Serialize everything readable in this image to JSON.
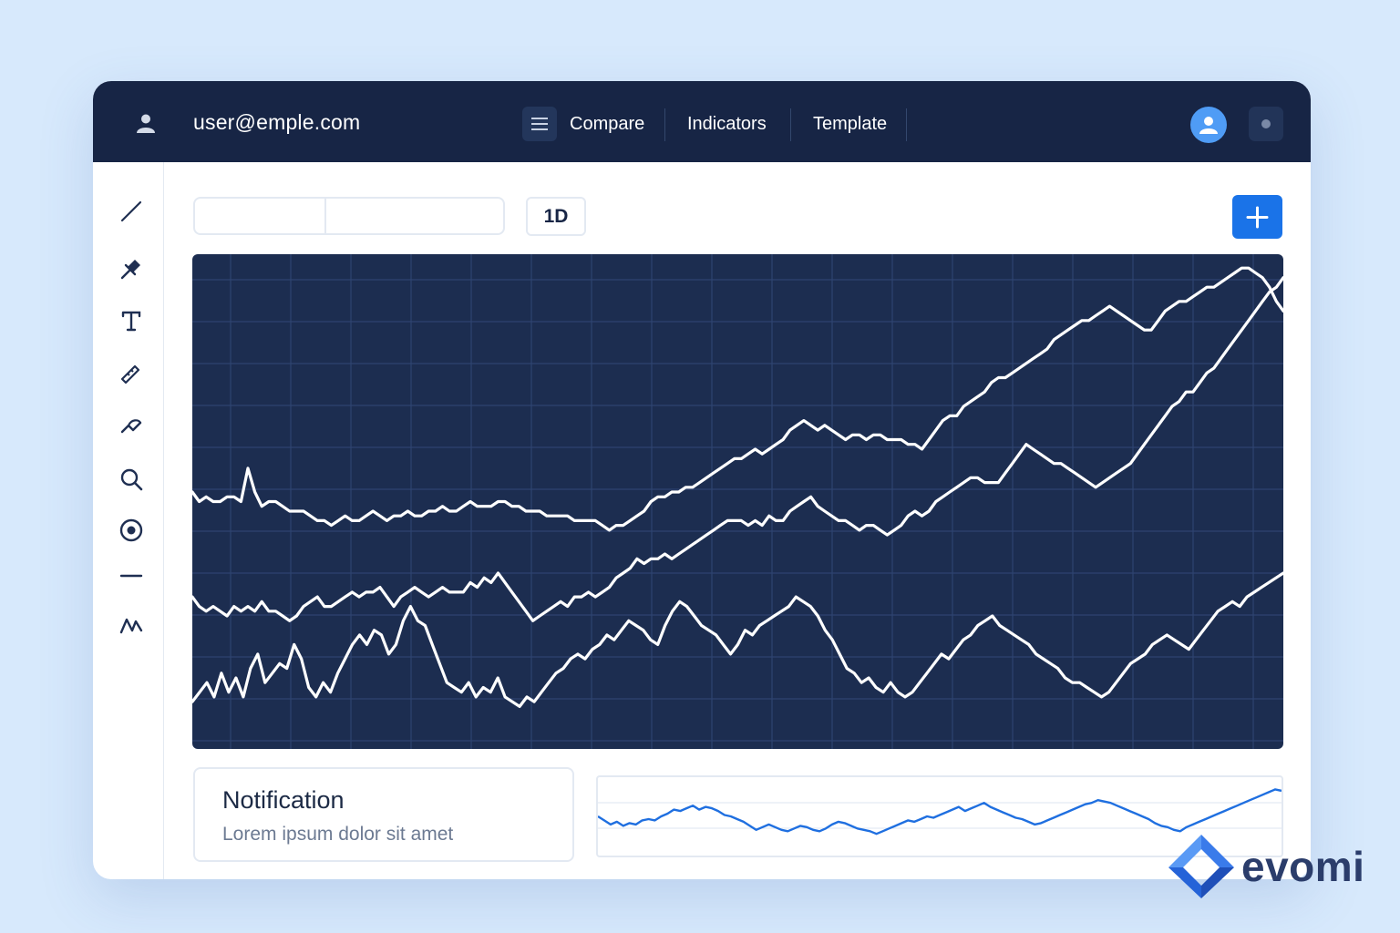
{
  "header": {
    "user_email": "user@emple.com",
    "nav": [
      {
        "label": "Compare"
      },
      {
        "label": "Indicators"
      },
      {
        "label": "Template"
      }
    ],
    "icons": {
      "user": "user-icon",
      "menu": "menu-icon",
      "avatar": "avatar-icon",
      "settings": "dot-icon"
    }
  },
  "sidebar": {
    "tools": [
      {
        "name": "line-tool-icon"
      },
      {
        "name": "pin-tool-icon"
      },
      {
        "name": "text-tool-icon"
      },
      {
        "name": "ruler-tool-icon"
      },
      {
        "name": "path-tool-icon"
      },
      {
        "name": "zoom-tool-icon"
      },
      {
        "name": "target-tool-icon"
      },
      {
        "name": "horizontal-line-tool-icon"
      },
      {
        "name": "wave-tool-icon"
      }
    ]
  },
  "toolbar": {
    "timeframe_label": "1D",
    "add_icon": "plus-icon"
  },
  "notification": {
    "title": "Notification",
    "body": "Lorem ipsum dolor sit amet"
  },
  "brand": {
    "name": "evomi"
  },
  "colors": {
    "topbar": "#172545",
    "chart_bg": "#1c2d50",
    "accent": "#1a73e8",
    "mini_line": "#1f6fe0"
  },
  "chart_data": [
    {
      "type": "line",
      "xlabel": "",
      "ylabel": "",
      "ylim": [
        0,
        100
      ],
      "grid": true,
      "series": [
        {
          "values": [
            52,
            50,
            51,
            50,
            50,
            51,
            51,
            50,
            57,
            52,
            49,
            50,
            50,
            49,
            48,
            48,
            48,
            47,
            46,
            46,
            45,
            46,
            47,
            46,
            46,
            47,
            48,
            47,
            46,
            47,
            47,
            48,
            47,
            47,
            48,
            48,
            49,
            48,
            48,
            49,
            50,
            49,
            49,
            49,
            50,
            50,
            49,
            49,
            48,
            48,
            48,
            47,
            47,
            47,
            47,
            46,
            46,
            46,
            46,
            45,
            44,
            45,
            45,
            46,
            47,
            48,
            50,
            51,
            51,
            52,
            52,
            53,
            53,
            54,
            55,
            56,
            57,
            58,
            59,
            59,
            60,
            61,
            60,
            61,
            62,
            63,
            65,
            66,
            67,
            66,
            65,
            66,
            65,
            64,
            63,
            64,
            64,
            63,
            64,
            64,
            63,
            63,
            63,
            62,
            62,
            61,
            63,
            65,
            67,
            68,
            68,
            70,
            71,
            72,
            73,
            75,
            76,
            76,
            77,
            78,
            79,
            80,
            81,
            82,
            84,
            85,
            86,
            87,
            88,
            88,
            89,
            90,
            91,
            90,
            89,
            88,
            87,
            86,
            86,
            88,
            90,
            91,
            92,
            92,
            93,
            94,
            95,
            95,
            96,
            97,
            98,
            99,
            99,
            98,
            97,
            95,
            92,
            90
          ]
        },
        {
          "values": [
            30,
            28,
            27,
            28,
            27,
            26,
            28,
            27,
            28,
            27,
            29,
            27,
            27,
            26,
            25,
            26,
            28,
            29,
            30,
            28,
            28,
            29,
            30,
            31,
            30,
            31,
            31,
            32,
            30,
            28,
            30,
            31,
            32,
            31,
            30,
            31,
            32,
            31,
            31,
            31,
            33,
            32,
            34,
            33,
            35,
            33,
            31,
            29,
            27,
            25,
            26,
            27,
            28,
            29,
            28,
            30,
            30,
            31,
            30,
            31,
            32,
            34,
            35,
            36,
            38,
            37,
            38,
            38,
            39,
            38,
            39,
            40,
            41,
            42,
            43,
            44,
            45,
            46,
            46,
            46,
            45,
            46,
            45,
            47,
            46,
            46,
            48,
            49,
            50,
            51,
            49,
            48,
            47,
            46,
            46,
            45,
            44,
            45,
            45,
            44,
            43,
            44,
            45,
            47,
            48,
            47,
            48,
            50,
            51,
            52,
            53,
            54,
            55,
            55,
            54,
            54,
            54,
            56,
            58,
            60,
            62,
            61,
            60,
            59,
            58,
            58,
            57,
            56,
            55,
            54,
            53,
            54,
            55,
            56,
            57,
            58,
            60,
            62,
            64,
            66,
            68,
            70,
            71,
            73,
            73,
            75,
            77,
            78,
            80,
            82,
            84,
            86,
            88,
            90,
            92,
            94,
            95,
            97
          ]
        },
        {
          "values": [
            8,
            10,
            12,
            9,
            14,
            10,
            13,
            9,
            15,
            18,
            12,
            14,
            16,
            15,
            20,
            17,
            11,
            9,
            12,
            10,
            14,
            17,
            20,
            22,
            20,
            23,
            22,
            18,
            20,
            25,
            28,
            25,
            24,
            20,
            16,
            12,
            11,
            10,
            12,
            9,
            11,
            10,
            13,
            9,
            8,
            7,
            9,
            8,
            10,
            12,
            14,
            15,
            17,
            18,
            17,
            19,
            20,
            22,
            21,
            23,
            25,
            24,
            23,
            21,
            20,
            24,
            27,
            29,
            28,
            26,
            24,
            23,
            22,
            20,
            18,
            20,
            23,
            22,
            24,
            25,
            26,
            27,
            28,
            30,
            29,
            28,
            26,
            23,
            21,
            18,
            15,
            14,
            12,
            13,
            11,
            10,
            12,
            10,
            9,
            10,
            12,
            14,
            16,
            18,
            17,
            19,
            21,
            22,
            24,
            25,
            26,
            24,
            23,
            22,
            21,
            20,
            18,
            17,
            16,
            15,
            13,
            12,
            12,
            11,
            10,
            9,
            10,
            12,
            14,
            16,
            17,
            18,
            20,
            21,
            22,
            21,
            20,
            19,
            21,
            23,
            25,
            27,
            28,
            29,
            28,
            30,
            31,
            32,
            33,
            34,
            35
          ]
        }
      ]
    },
    {
      "type": "line",
      "xlabel": "",
      "ylabel": "",
      "ylim": [
        0,
        100
      ],
      "grid": true,
      "series": [
        {
          "values": [
            50,
            44,
            38,
            42,
            36,
            40,
            38,
            44,
            46,
            44,
            50,
            54,
            60,
            58,
            62,
            66,
            60,
            64,
            62,
            58,
            52,
            50,
            46,
            42,
            36,
            30,
            34,
            38,
            34,
            30,
            28,
            32,
            36,
            34,
            30,
            28,
            32,
            38,
            42,
            40,
            36,
            32,
            30,
            28,
            24,
            28,
            32,
            36,
            40,
            44,
            42,
            46,
            50,
            48,
            52,
            56,
            60,
            64,
            58,
            62,
            66,
            70,
            64,
            60,
            56,
            52,
            48,
            46,
            42,
            38,
            40,
            44,
            48,
            52,
            56,
            60,
            64,
            68,
            70,
            74,
            72,
            70,
            66,
            62,
            58,
            54,
            50,
            46,
            40,
            36,
            34,
            30,
            28,
            34,
            38,
            42,
            46,
            50,
            54,
            58,
            62,
            66,
            70,
            74,
            78,
            82,
            86,
            90,
            88
          ]
        }
      ]
    }
  ]
}
